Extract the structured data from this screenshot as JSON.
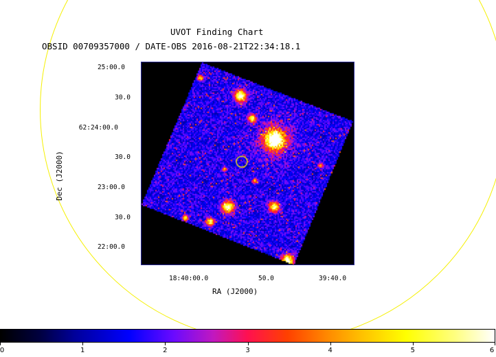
{
  "chart": {
    "title": "UVOT Finding Chart",
    "subtitle": "OBSID 00709357000 / DATE-OBS 2016-08-21T22:34:18.1",
    "ylabel": "Dec (J2000)",
    "xlabel": "RA (J2000)",
    "y_ticks": [
      "25:00.0",
      "30.0",
      "62:24:00.0",
      "30.0",
      "23:00.0",
      "30.0",
      "22:00.0"
    ],
    "x_ticks": [
      "18:40:00.0",
      "50.0",
      "39:40.0"
    ]
  },
  "colorbar": {
    "labels": [
      "0",
      "1",
      "2",
      "3",
      "4",
      "5",
      "6"
    ],
    "values": [
      0,
      1,
      2,
      3,
      4,
      5,
      6
    ]
  },
  "colors": {
    "region_circle": "#f5f000",
    "frame_border": "#2a2a9a"
  }
}
